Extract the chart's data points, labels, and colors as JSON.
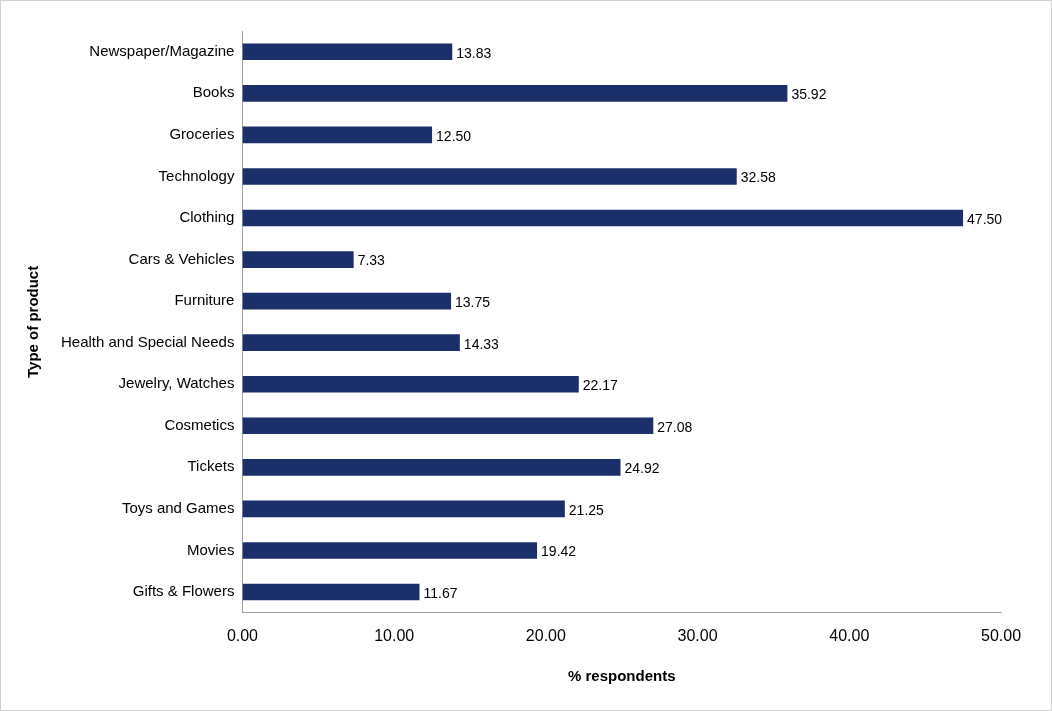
{
  "chart_data": {
    "type": "bar",
    "orientation": "horizontal",
    "xlabel": "% respondents",
    "ylabel": "Type of product",
    "categories": [
      "Newspaper/Magazine",
      "Books",
      "Groceries",
      "Technology",
      "Clothing",
      "Cars & Vehicles",
      "Furniture",
      "Health and Special Needs",
      "Jewelry, Watches",
      "Cosmetics",
      "Tickets",
      "Toys and Games",
      "Movies",
      "Gifts & Flowers"
    ],
    "values": [
      13.83,
      35.92,
      12.5,
      32.58,
      47.5,
      7.33,
      13.75,
      14.33,
      22.17,
      27.08,
      24.92,
      21.25,
      19.42,
      11.67
    ],
    "value_labels": [
      "13.83",
      "35.92",
      "12.50",
      "32.58",
      "47.50",
      "7.33",
      "13.75",
      "14.33",
      "22.17",
      "27.08",
      "24.92",
      "21.25",
      "19.42",
      "11.67"
    ],
    "color": "#1b2f6b",
    "xlim": [
      0,
      50
    ],
    "xticks": [
      {
        "value": 0,
        "label": "0.00"
      },
      {
        "value": 10,
        "label": "10.00"
      },
      {
        "value": 20,
        "label": "20.00"
      },
      {
        "value": 30,
        "label": "30.00"
      },
      {
        "value": 40,
        "label": "40.00"
      },
      {
        "value": 50,
        "label": "50.00"
      }
    ],
    "grid": false,
    "legend": false
  }
}
